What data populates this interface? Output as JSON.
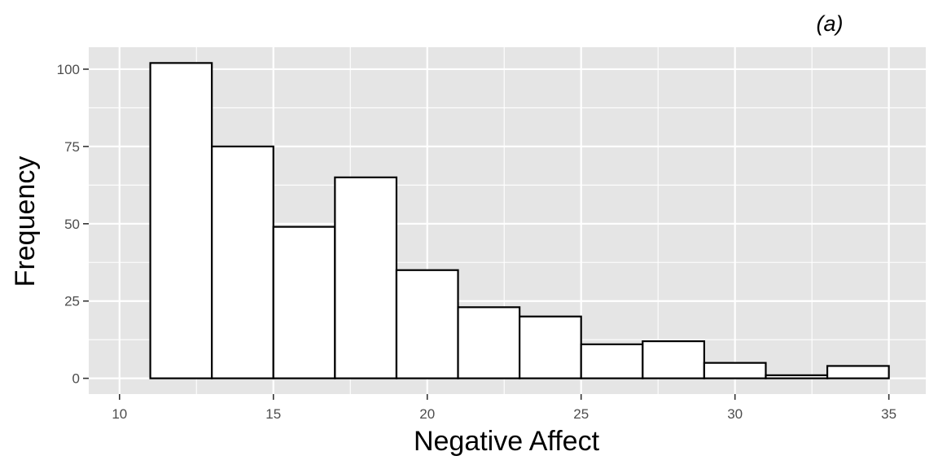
{
  "chart_data": {
    "type": "histogram",
    "tag": "(a)",
    "xlabel": "Negative Affect",
    "ylabel": "Frequency",
    "xlim": [
      9,
      36.2
    ],
    "ylim": [
      -5.1,
      107.1
    ],
    "x_ticks": [
      10,
      15,
      20,
      25,
      30,
      35
    ],
    "x_tick_labels": [
      "10",
      "15",
      "20",
      "25",
      "30",
      "35"
    ],
    "y_ticks": [
      0,
      25,
      50,
      75,
      100
    ],
    "y_tick_labels": [
      "0",
      "25",
      "50",
      "75",
      "100"
    ],
    "bin_edges": [
      11,
      13,
      15,
      17,
      19,
      21,
      23,
      25,
      27,
      29,
      31,
      33,
      35
    ],
    "counts": [
      102,
      75,
      49,
      65,
      35,
      23,
      20,
      11,
      12,
      5,
      1,
      4
    ],
    "panel_background": "#e5e5e5",
    "grid_color": "#ffffff",
    "bar_fill": "#ffffff",
    "bar_stroke": "#000000",
    "grid": true
  }
}
